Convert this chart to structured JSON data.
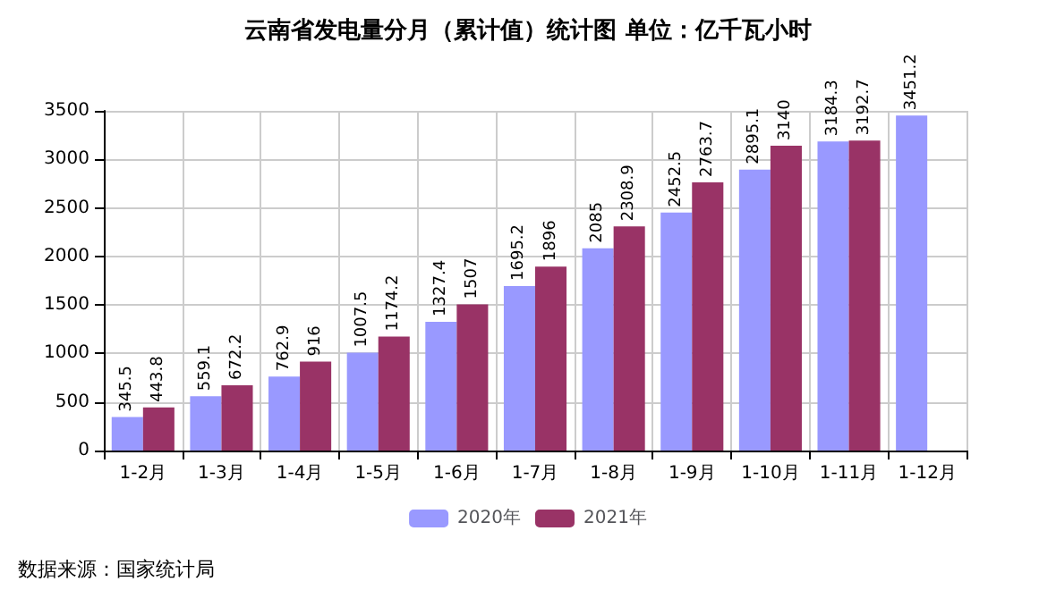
{
  "chart_data": {
    "type": "bar",
    "title": "云南省发电量分月（累计值）统计图 单位：亿千瓦小时",
    "categories": [
      "1-2月",
      "1-3月",
      "1-4月",
      "1-5月",
      "1-6月",
      "1-7月",
      "1-8月",
      "1-9月",
      "1-10月",
      "1-11月",
      "1-12月"
    ],
    "series": [
      {
        "name": "2020年",
        "color": "#9999ff",
        "values": [
          345.5,
          559.1,
          762.9,
          1007.5,
          1327.4,
          1695.2,
          2085,
          2452.5,
          2895.1,
          3184.3,
          3451.2
        ]
      },
      {
        "name": "2021年",
        "color": "#993366",
        "values": [
          443.8,
          672.2,
          916,
          1174.2,
          1507,
          1896,
          2308.9,
          2763.7,
          3140,
          3192.7,
          null
        ]
      }
    ],
    "ylim": [
      0,
      3500
    ],
    "yticks": [
      0,
      500,
      1000,
      1500,
      2000,
      2500,
      3000,
      3500
    ],
    "grid": true,
    "legend": "bottom",
    "data_labels": true,
    "annotations": [
      "数据来源：国家统计局"
    ]
  }
}
